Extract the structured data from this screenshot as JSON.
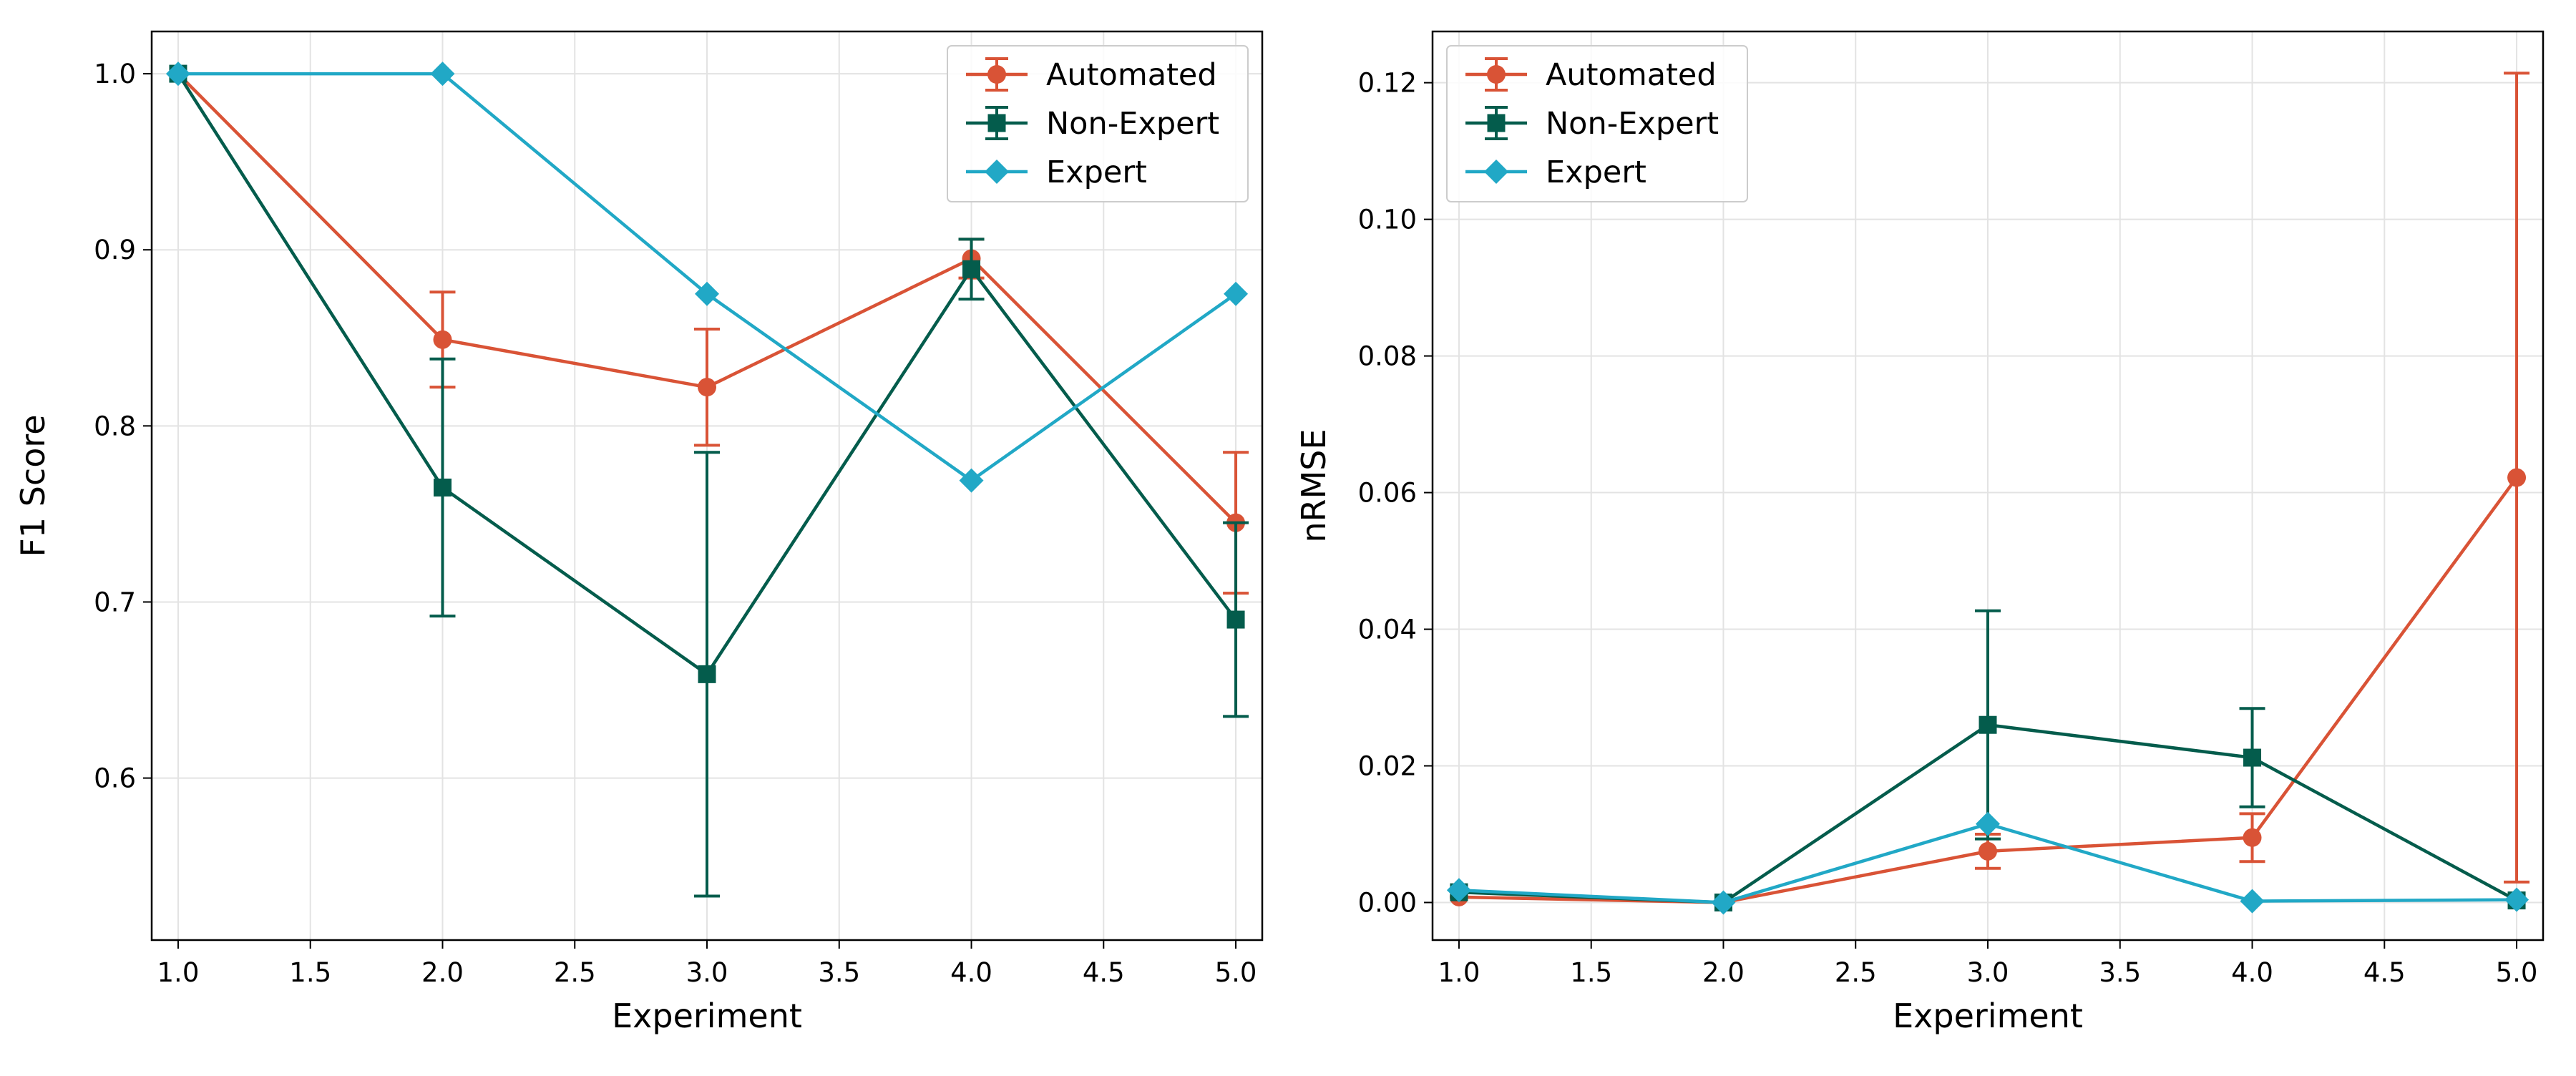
{
  "chart_data": [
    {
      "type": "line",
      "title": "",
      "xlabel": "Experiment",
      "ylabel": "F1 Score",
      "xlim": [
        0.9,
        5.1
      ],
      "ylim": [
        0.508,
        1.024
      ],
      "xticks": [
        1.0,
        1.5,
        2.0,
        2.5,
        3.0,
        3.5,
        4.0,
        4.5,
        5.0
      ],
      "xtick_labels": [
        "1.0",
        "1.5",
        "2.0",
        "2.5",
        "3.0",
        "3.5",
        "4.0",
        "4.5",
        "5.0"
      ],
      "yticks": [
        0.6,
        0.7,
        0.8,
        0.9,
        1.0
      ],
      "ytick_labels": [
        "0.6",
        "0.7",
        "0.8",
        "0.9",
        "1.0"
      ],
      "grid": true,
      "legend_position": "top-right",
      "series": [
        {
          "name": "Automated",
          "color": "#d95336",
          "marker": "circle",
          "x": [
            1,
            2,
            3,
            4,
            5
          ],
          "y": [
            1.0,
            0.849,
            0.822,
            0.895,
            0.745
          ],
          "err": [
            0,
            0.027,
            0.033,
            0.011,
            0.04
          ]
        },
        {
          "name": "Non-Expert",
          "color": "#045c4c",
          "marker": "square",
          "x": [
            1,
            2,
            3,
            4,
            5
          ],
          "y": [
            1.0,
            0.765,
            0.659,
            0.889,
            0.69
          ],
          "err": [
            0,
            0.073,
            0.126,
            0.017,
            0.055
          ]
        },
        {
          "name": "Expert",
          "color": "#21a8c6",
          "marker": "diamond",
          "x": [
            1,
            2,
            3,
            4,
            5
          ],
          "y": [
            1.0,
            1.0,
            0.875,
            0.769,
            0.875
          ],
          "err": [
            0,
            0,
            0,
            0,
            0
          ]
        }
      ]
    },
    {
      "type": "line",
      "title": "",
      "xlabel": "Experiment",
      "ylabel": "nRMSE",
      "xlim": [
        0.9,
        5.1
      ],
      "ylim": [
        -0.0055,
        0.1275
      ],
      "xticks": [
        1.0,
        1.5,
        2.0,
        2.5,
        3.0,
        3.5,
        4.0,
        4.5,
        5.0
      ],
      "xtick_labels": [
        "1.0",
        "1.5",
        "2.0",
        "2.5",
        "3.0",
        "3.5",
        "4.0",
        "4.5",
        "5.0"
      ],
      "yticks": [
        0.0,
        0.02,
        0.04,
        0.06,
        0.08,
        0.1,
        0.12
      ],
      "ytick_labels": [
        "0.00",
        "0.02",
        "0.04",
        "0.06",
        "0.08",
        "0.10",
        "0.12"
      ],
      "grid": true,
      "legend_position": "top-left",
      "series": [
        {
          "name": "Automated",
          "color": "#d95336",
          "marker": "circle",
          "x": [
            1,
            2,
            3,
            4,
            5
          ],
          "y": [
            0.0008,
            0.0,
            0.0075,
            0.0095,
            0.0622
          ],
          "err": [
            0,
            0,
            0.0025,
            0.0035,
            0.0592
          ]
        },
        {
          "name": "Non-Expert",
          "color": "#045c4c",
          "marker": "square",
          "x": [
            1,
            2,
            3,
            4,
            5
          ],
          "y": [
            0.0015,
            0.0,
            0.026,
            0.0212,
            0.0003
          ],
          "err": [
            0,
            0,
            0.0167,
            0.0072,
            0
          ]
        },
        {
          "name": "Expert",
          "color": "#21a8c6",
          "marker": "diamond",
          "x": [
            1,
            2,
            3,
            4,
            5
          ],
          "y": [
            0.0018,
            0.0,
            0.0115,
            0.0002,
            0.0004
          ],
          "err": [
            0,
            0,
            0,
            0,
            0
          ]
        }
      ]
    }
  ]
}
